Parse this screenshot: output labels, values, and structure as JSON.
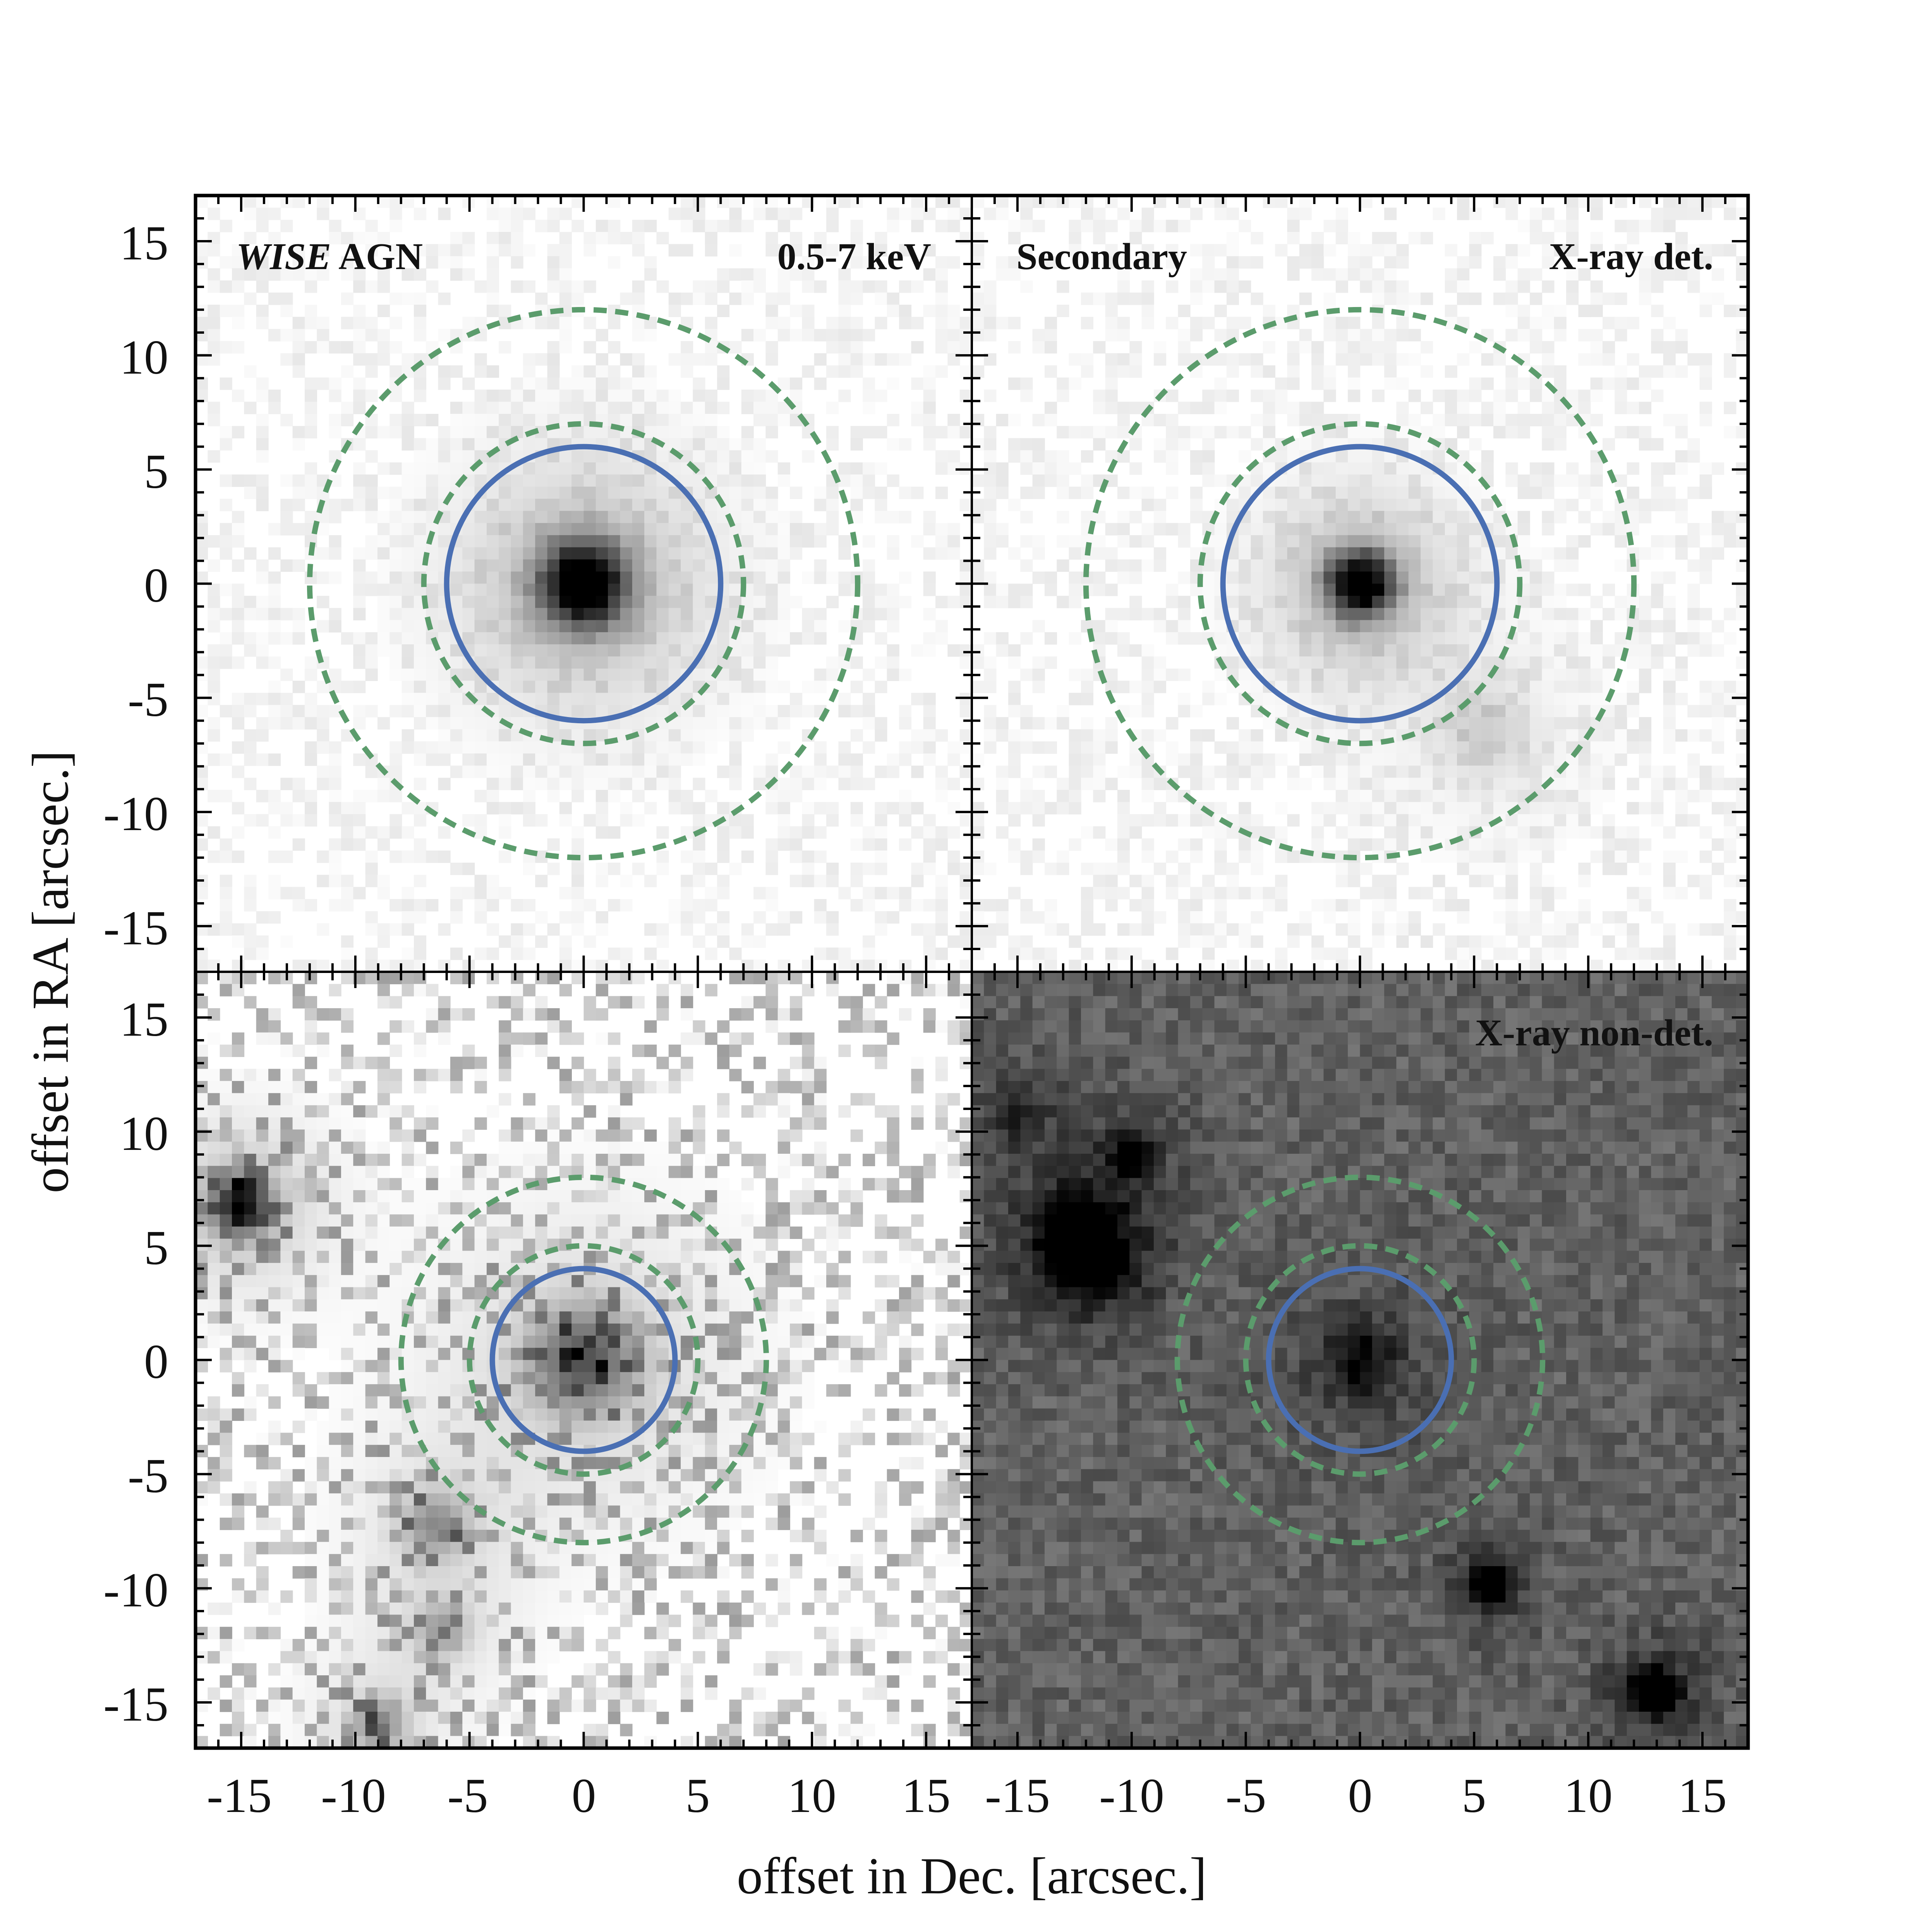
{
  "chart_data": {
    "type": "image-grid",
    "xlabel": "offset in Dec. [arcsec.]",
    "ylabel": "offset in RA [arcsec.]",
    "xlim": [
      -17,
      17
    ],
    "ylim": [
      -17,
      17
    ],
    "ticks": [
      -15,
      -10,
      -5,
      0,
      5,
      10,
      15
    ],
    "tick_labels": [
      "-15",
      "-10",
      "-5",
      "0",
      "5",
      "10",
      "15"
    ],
    "colors": {
      "aperture": "#4a6fb3",
      "annulus": "#5b9c6c",
      "frame": "#000000"
    },
    "panels": [
      {
        "id": "top-left",
        "label_left_italic": "WISE",
        "label_left_rest": " AGN",
        "label_right": "0.5-7 keV",
        "aperture_radius": 6,
        "annulus_radii": [
          7,
          12
        ],
        "background": "light",
        "sources": [
          {
            "x": 0,
            "y": 0,
            "strength": 1.0,
            "width": 1.3
          }
        ]
      },
      {
        "id": "top-right",
        "label_left": "Secondary",
        "label_right": "X-ray det.",
        "aperture_radius": 6,
        "annulus_radii": [
          7,
          12
        ],
        "background": "light",
        "sources": [
          {
            "x": 0,
            "y": 0,
            "strength": 0.95,
            "width": 1.0
          },
          {
            "x": 5.5,
            "y": -6.5,
            "strength": 0.15,
            "width": 1.5
          }
        ]
      },
      {
        "id": "bottom-left",
        "aperture_radius": 4,
        "annulus_radii": [
          5,
          8
        ],
        "background": "noisy",
        "sources": [
          {
            "x": 0,
            "y": 0,
            "strength": 0.55,
            "width": 1.6
          },
          {
            "x": -15,
            "y": 6.8,
            "strength": 0.8,
            "width": 0.9
          },
          {
            "x": -6.5,
            "y": -7.2,
            "strength": 0.35,
            "width": 1.0
          },
          {
            "x": -6.2,
            "y": -11.8,
            "strength": 0.3,
            "width": 0.8
          },
          {
            "x": -9,
            "y": -16,
            "strength": 0.4,
            "width": 0.8
          }
        ]
      },
      {
        "id": "bottom-right",
        "label_right": "X-ray non-det.",
        "aperture_radius": 4,
        "annulus_radii": [
          5,
          8
        ],
        "background": "gray",
        "sources": [
          {
            "x": 0,
            "y": 0,
            "strength": 0.3,
            "width": 1.2
          },
          {
            "x": -12.3,
            "y": 5.5,
            "strength": 0.85,
            "width": 0.8
          },
          {
            "x": -11.6,
            "y": 4.2,
            "strength": 0.7,
            "width": 0.7
          },
          {
            "x": -10,
            "y": 9,
            "strength": 0.4,
            "width": 0.6
          },
          {
            "x": -15,
            "y": 11,
            "strength": 0.2,
            "width": 1.0
          },
          {
            "x": 5.7,
            "y": -9.9,
            "strength": 0.75,
            "width": 0.5
          },
          {
            "x": 12.9,
            "y": -14.5,
            "strength": 0.9,
            "width": 0.55
          }
        ]
      }
    ]
  }
}
